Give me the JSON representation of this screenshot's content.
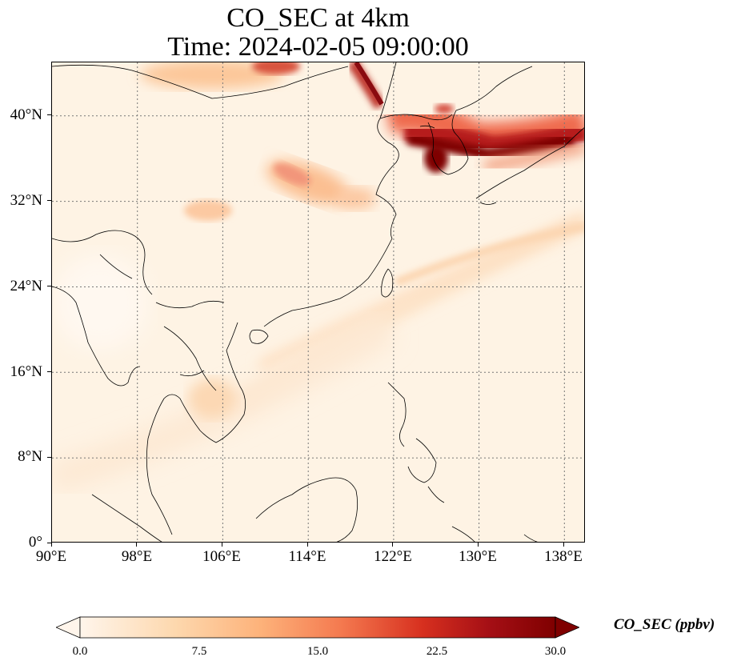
{
  "title": {
    "line1": "CO_SEC at 4km",
    "line2": "Time: 2024-02-05 09:00:00"
  },
  "map": {
    "extent_lon": [
      90,
      140
    ],
    "extent_lat": [
      0,
      45
    ],
    "grid": "dotted",
    "lat_ticks": [
      "0°",
      "8°N",
      "16°N",
      "24°N",
      "32°N",
      "40°N"
    ],
    "lon_ticks": [
      "90°E",
      "98°E",
      "106°E",
      "114°E",
      "122°E",
      "130°E",
      "138°E"
    ],
    "lat_values": [
      0,
      8,
      16,
      24,
      32,
      40
    ],
    "lon_values": [
      90,
      98,
      106,
      114,
      122,
      130,
      138
    ]
  },
  "colorbar": {
    "label": "CO_SEC (ppbv)",
    "ticks": [
      "0.0",
      "7.5",
      "15.0",
      "22.5",
      "30.0"
    ],
    "range": [
      0,
      30
    ],
    "extend": "both",
    "colors": [
      "#fff5eb",
      "#fdd8ae",
      "#fdae6b",
      "#f16913",
      "#d03a2a",
      "#a50f15",
      "#7f0000"
    ]
  }
}
